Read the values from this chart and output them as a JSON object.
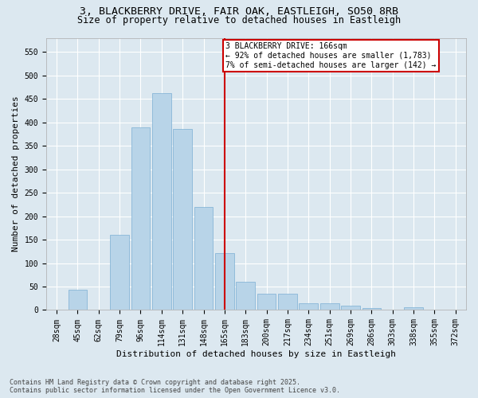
{
  "title1": "3, BLACKBERRY DRIVE, FAIR OAK, EASTLEIGH, SO50 8RB",
  "title2": "Size of property relative to detached houses in Eastleigh",
  "xlabel": "Distribution of detached houses by size in Eastleigh",
  "ylabel": "Number of detached properties",
  "categories": [
    "28sqm",
    "45sqm",
    "62sqm",
    "79sqm",
    "96sqm",
    "114sqm",
    "131sqm",
    "148sqm",
    "165sqm",
    "183sqm",
    "200sqm",
    "217sqm",
    "234sqm",
    "251sqm",
    "269sqm",
    "286sqm",
    "303sqm",
    "338sqm",
    "355sqm",
    "372sqm"
  ],
  "values": [
    0,
    43,
    0,
    160,
    390,
    462,
    385,
    220,
    122,
    60,
    35,
    35,
    15,
    15,
    10,
    5,
    0,
    6,
    0,
    0
  ],
  "bar_color": "#b8d4e8",
  "bar_edgecolor": "#7bafd4",
  "vline_x_index": 8,
  "vline_color": "#cc0000",
  "annotation_title": "3 BLACKBERRY DRIVE: 166sqm",
  "annotation_line1": "← 92% of detached houses are smaller (1,783)",
  "annotation_line2": "7% of semi-detached houses are larger (142) →",
  "annotation_box_color": "#cc0000",
  "background_color": "#dce8f0",
  "grid_color": "#ffffff",
  "ylim": [
    0,
    580
  ],
  "yticks": [
    0,
    50,
    100,
    150,
    200,
    250,
    300,
    350,
    400,
    450,
    500,
    550
  ],
  "footer1": "Contains HM Land Registry data © Crown copyright and database right 2025.",
  "footer2": "Contains public sector information licensed under the Open Government Licence v3.0.",
  "title1_fontsize": 9.5,
  "title2_fontsize": 8.5,
  "axis_label_fontsize": 8,
  "tick_fontsize": 7,
  "annotation_fontsize": 7,
  "footer_fontsize": 6
}
